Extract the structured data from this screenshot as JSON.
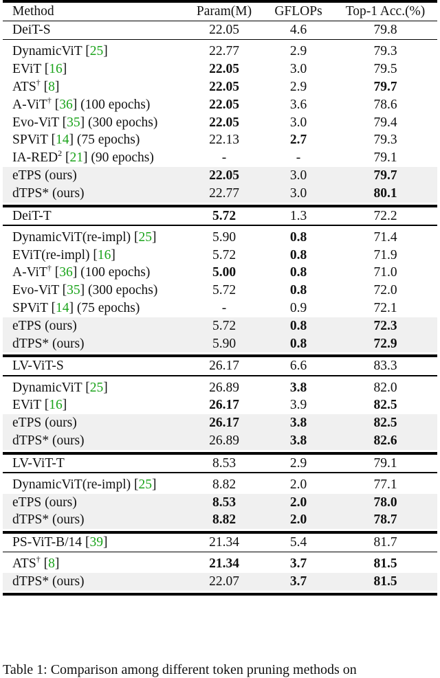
{
  "header": {
    "method": "Method",
    "param": "Param(M)",
    "gflops": "GFLOPs",
    "acc": "Top-1 Acc.(%)"
  },
  "groups": [
    {
      "base": {
        "method": "DeiT-S",
        "param": "22.05",
        "gflops": "4.6",
        "acc": "79.8"
      },
      "rows": [
        {
          "pre": "DynamicViT ",
          "cite": "25",
          "post": "",
          "param": "22.77",
          "gflops": "2.9",
          "acc": "79.3"
        },
        {
          "pre": "EViT ",
          "cite": "16",
          "post": "",
          "param": "22.05",
          "gflops": "3.0",
          "acc": "79.5",
          "bold": [
            "param"
          ]
        },
        {
          "pre": "ATS",
          "sup": "†",
          "cite": "8",
          "post": "",
          "param": "22.05",
          "gflops": "2.9",
          "acc": "79.7",
          "bold": [
            "param",
            "acc"
          ]
        },
        {
          "pre": "A-ViT",
          "sup": "†",
          "cite": "36",
          "post": " (100 epochs)",
          "param": "22.05",
          "gflops": "3.6",
          "acc": "78.6",
          "bold": [
            "param"
          ]
        },
        {
          "pre": "Evo-ViT ",
          "cite": "35",
          "post": " (300 epochs)",
          "param": "22.05",
          "gflops": "3.0",
          "acc": "79.4",
          "bold": [
            "param"
          ]
        },
        {
          "pre": "SPViT ",
          "cite": "14",
          "post": " (75 epochs)",
          "param": "22.13",
          "gflops": "2.7",
          "acc": "79.3",
          "bold": [
            "gflops"
          ]
        },
        {
          "pre": "IA-RED",
          "sup": "2",
          "cite": "21",
          "post": " (90 epochs)",
          "param": "-",
          "gflops": "-",
          "acc": "79.1"
        },
        {
          "pre": "eTPS (ours)",
          "param": "22.05",
          "gflops": "3.0",
          "acc": "79.7",
          "bold": [
            "param",
            "acc"
          ],
          "shade": true
        },
        {
          "pre": "dTPS* (ours)",
          "param": "22.77",
          "gflops": "3.0",
          "acc": "80.1",
          "bold": [
            "acc"
          ],
          "shade": true
        }
      ]
    },
    {
      "base": {
        "method": "DeiT-T",
        "param": "5.72",
        "gflops": "1.3",
        "acc": "72.2",
        "bold": [
          "param"
        ]
      },
      "rows": [
        {
          "pre": "DynamicViT(re-impl) ",
          "cite": "25",
          "post": "",
          "param": "5.90",
          "gflops": "0.8",
          "acc": "71.4",
          "bold": [
            "gflops"
          ]
        },
        {
          "pre": "EViT(re-impl) ",
          "cite": "16",
          "post": "",
          "param": "5.72",
          "gflops": "0.8",
          "acc": "71.9",
          "bold": [
            "gflops"
          ]
        },
        {
          "pre": "A-ViT",
          "sup": "†",
          "cite": "36",
          "post": " (100 epochs)",
          "param": "5.00",
          "gflops": "0.8",
          "acc": "71.0",
          "bold": [
            "param",
            "gflops"
          ]
        },
        {
          "pre": "Evo-ViT ",
          "cite": "35",
          "post": " (300 epochs)",
          "param": "5.72",
          "gflops": "0.8",
          "acc": "72.0",
          "bold": [
            "gflops"
          ]
        },
        {
          "pre": "SPViT ",
          "cite": "14",
          "post": " (75 epochs)",
          "param": "-",
          "gflops": "0.9",
          "acc": "72.1"
        },
        {
          "pre": "eTPS (ours)",
          "param": "5.72",
          "gflops": "0.8",
          "acc": "72.3",
          "bold": [
            "gflops",
            "acc"
          ],
          "shade": true
        },
        {
          "pre": "dTPS* (ours)",
          "param": "5.90",
          "gflops": "0.8",
          "acc": "72.9",
          "bold": [
            "gflops",
            "acc"
          ],
          "shade": true
        }
      ]
    },
    {
      "base": {
        "method": "LV-ViT-S",
        "param": "26.17",
        "gflops": "6.6",
        "acc": "83.3"
      },
      "rows": [
        {
          "pre": "DynamicViT ",
          "cite": "25",
          "post": "",
          "param": "26.89",
          "gflops": "3.8",
          "acc": "82.0",
          "bold": [
            "gflops"
          ]
        },
        {
          "pre": "EViT ",
          "cite": "16",
          "post": "",
          "param": "26.17",
          "gflops": "3.9",
          "acc": "82.5",
          "bold": [
            "param",
            "acc"
          ]
        },
        {
          "pre": "eTPS (ours)",
          "param": "26.17",
          "gflops": "3.8",
          "acc": "82.5",
          "bold": [
            "param",
            "gflops",
            "acc"
          ],
          "shade": true
        },
        {
          "pre": "dTPS* (ours)",
          "param": "26.89",
          "gflops": "3.8",
          "acc": "82.6",
          "bold": [
            "gflops",
            "acc"
          ],
          "shade": true
        }
      ]
    },
    {
      "base": {
        "method": "LV-ViT-T",
        "param": "8.53",
        "gflops": "2.9",
        "acc": "79.1"
      },
      "rows": [
        {
          "pre": "DynamicViT(re-impl) ",
          "cite": "25",
          "post": "",
          "param": "8.82",
          "gflops": "2.0",
          "acc": "77.1"
        },
        {
          "pre": "eTPS (ours)",
          "param": "8.53",
          "gflops": "2.0",
          "acc": "78.0",
          "bold": [
            "param",
            "gflops",
            "acc"
          ],
          "shade": true
        },
        {
          "pre": "dTPS* (ours)",
          "param": "8.82",
          "gflops": "2.0",
          "acc": "78.7",
          "bold": [
            "param",
            "gflops",
            "acc"
          ],
          "shade": true
        }
      ]
    },
    {
      "base": {
        "method": "PS-ViT-B/14 ",
        "cite": "39",
        "param": "21.34",
        "gflops": "5.4",
        "acc": "81.7"
      },
      "rows": [
        {
          "pre": "ATS",
          "sup": "†",
          "cite": "8",
          "post": "",
          "param": "21.34",
          "gflops": "3.7",
          "acc": "81.5",
          "bold": [
            "param",
            "gflops",
            "acc"
          ]
        },
        {
          "pre": "dTPS* (ours)",
          "param": "22.07",
          "gflops": "3.7",
          "acc": "81.5",
          "bold": [
            "gflops",
            "acc"
          ],
          "shade": true
        }
      ]
    }
  ],
  "caption": "Table 1: Comparison among different token pruning methods on"
}
